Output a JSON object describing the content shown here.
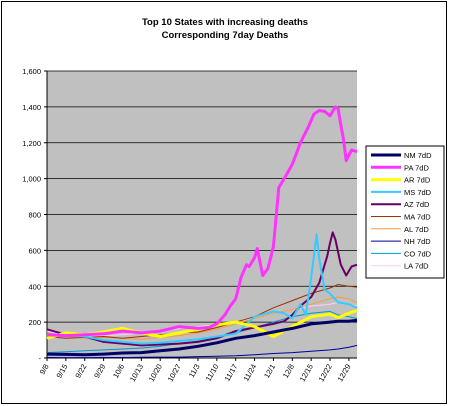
{
  "chart_data": {
    "type": "line",
    "title": "Top 10 States with increasing deaths",
    "subtitle": "Corresponding 7day Deaths",
    "xlabel": "",
    "ylabel": "",
    "ylim": [
      0,
      1600
    ],
    "yticks": [
      "-",
      "200",
      "400",
      "600",
      "800",
      "1,000",
      "1,200",
      "1,400",
      "1,600"
    ],
    "yticks_values": [
      0,
      200,
      400,
      600,
      800,
      1000,
      1200,
      1400,
      1600
    ],
    "xticks": [
      "9/8",
      "9/15",
      "9/22",
      "9/29",
      "10/6",
      "10/13",
      "10/20",
      "10/27",
      "11/3",
      "11/10",
      "11/17",
      "11/24",
      "12/1",
      "12/8",
      "12/15",
      "12/22",
      "12/29"
    ],
    "xticks_values": [
      0,
      7,
      14,
      21,
      28,
      35,
      42,
      49,
      56,
      63,
      70,
      77,
      84,
      91,
      98,
      105,
      112
    ],
    "x_range": [
      0,
      115
    ],
    "grid": true,
    "legend_position": "right",
    "plot_background": "#c0c0c0",
    "series": [
      {
        "name": "NM 7dD",
        "color": "#000066",
        "width": 3,
        "x": [
          0,
          7,
          14,
          21,
          28,
          35,
          42,
          49,
          56,
          63,
          70,
          77,
          84,
          91,
          98,
          105,
          108,
          112,
          115
        ],
        "y": [
          22,
          20,
          18,
          22,
          28,
          30,
          40,
          50,
          65,
          85,
          110,
          125,
          145,
          165,
          190,
          200,
          205,
          205,
          210
        ]
      },
      {
        "name": "PA 7dD",
        "color": "#ff33ff",
        "width": 3,
        "x": [
          0,
          7,
          14,
          21,
          28,
          35,
          42,
          49,
          56,
          60,
          63,
          66,
          68,
          70,
          72,
          74,
          75,
          77,
          78,
          80,
          82,
          84,
          86,
          88,
          91,
          94,
          97,
          99,
          101,
          103,
          105,
          107,
          108,
          109,
          110,
          111,
          112,
          113,
          115
        ],
        "y": [
          130,
          125,
          130,
          135,
          150,
          140,
          150,
          175,
          165,
          170,
          190,
          240,
          290,
          330,
          450,
          520,
          510,
          560,
          610,
          460,
          500,
          620,
          950,
          1000,
          1080,
          1200,
          1290,
          1360,
          1380,
          1375,
          1350,
          1400,
          1390,
          1300,
          1220,
          1100,
          1130,
          1160,
          1150
        ]
      },
      {
        "name": "AR 7dD",
        "color": "#ffff00",
        "width": 3,
        "x": [
          0,
          7,
          14,
          21,
          28,
          35,
          42,
          49,
          56,
          63,
          70,
          77,
          84,
          91,
          98,
          105,
          108,
          112,
          115
        ],
        "y": [
          110,
          140,
          130,
          145,
          165,
          140,
          120,
          140,
          160,
          185,
          200,
          175,
          120,
          175,
          230,
          245,
          225,
          250,
          265
        ]
      },
      {
        "name": "MS 7dD",
        "color": "#33ccff",
        "width": 2,
        "x": [
          0,
          7,
          14,
          21,
          28,
          35,
          42,
          49,
          56,
          63,
          70,
          77,
          84,
          88,
          91,
          94,
          96,
          98,
          100,
          101,
          103,
          105,
          108,
          112,
          115
        ],
        "y": [
          130,
          125,
          120,
          100,
          90,
          80,
          85,
          95,
          105,
          120,
          135,
          230,
          260,
          250,
          220,
          300,
          240,
          450,
          690,
          550,
          380,
          360,
          310,
          300,
          280
        ]
      },
      {
        "name": "AZ 7dD",
        "color": "#660066",
        "width": 2,
        "x": [
          0,
          7,
          14,
          21,
          28,
          35,
          42,
          49,
          56,
          63,
          70,
          77,
          84,
          88,
          91,
          94,
          98,
          101,
          104,
          105,
          106,
          107,
          109,
          111,
          113,
          115
        ],
        "y": [
          160,
          130,
          120,
          90,
          80,
          70,
          75,
          80,
          90,
          110,
          150,
          170,
          190,
          205,
          240,
          290,
          340,
          420,
          570,
          640,
          700,
          660,
          520,
          460,
          510,
          520
        ]
      },
      {
        "name": "MA 7dD",
        "color": "#993300",
        "width": 1,
        "x": [
          0,
          7,
          14,
          21,
          28,
          35,
          42,
          49,
          56,
          63,
          70,
          77,
          84,
          91,
          98,
          105,
          108,
          112,
          115
        ],
        "y": [
          120,
          110,
          115,
          120,
          110,
          120,
          130,
          140,
          145,
          170,
          200,
          230,
          280,
          320,
          360,
          390,
          410,
          400,
          395
        ]
      },
      {
        "name": "AL 7dD",
        "color": "#ff9933",
        "width": 1,
        "x": [
          0,
          7,
          14,
          21,
          28,
          35,
          42,
          49,
          56,
          63,
          70,
          77,
          84,
          91,
          98,
          105,
          108,
          112,
          115
        ],
        "y": [
          140,
          120,
          110,
          115,
          110,
          105,
          115,
          125,
          140,
          160,
          190,
          220,
          250,
          270,
          300,
          330,
          340,
          330,
          310
        ]
      },
      {
        "name": "NH 7dD",
        "color": "#000099",
        "width": 1,
        "x": [
          0,
          7,
          14,
          21,
          28,
          35,
          42,
          49,
          56,
          63,
          70,
          77,
          84,
          91,
          98,
          105,
          108,
          112,
          115
        ],
        "y": [
          3,
          2,
          2,
          3,
          3,
          4,
          5,
          5,
          8,
          10,
          12,
          18,
          25,
          30,
          38,
          45,
          50,
          60,
          70
        ]
      },
      {
        "name": "CO 7dD",
        "color": "#0099cc",
        "width": 1,
        "x": [
          0,
          7,
          14,
          21,
          28,
          35,
          42,
          49,
          56,
          63,
          70,
          77,
          84,
          91,
          98,
          105,
          108,
          112,
          115
        ],
        "y": [
          30,
          35,
          40,
          45,
          50,
          55,
          65,
          80,
          95,
          115,
          140,
          170,
          200,
          230,
          250,
          260,
          240,
          230,
          220
        ]
      },
      {
        "name": "LA 7dD",
        "color": "#ffccff",
        "width": 1,
        "x": [
          0,
          7,
          14,
          21,
          28,
          35,
          42,
          49,
          56,
          63,
          70,
          77,
          84,
          91,
          98,
          105,
          108,
          112,
          115
        ],
        "y": [
          150,
          130,
          120,
          125,
          130,
          140,
          150,
          165,
          175,
          185,
          200,
          225,
          250,
          270,
          290,
          300,
          310,
          300,
          290
        ]
      }
    ]
  }
}
